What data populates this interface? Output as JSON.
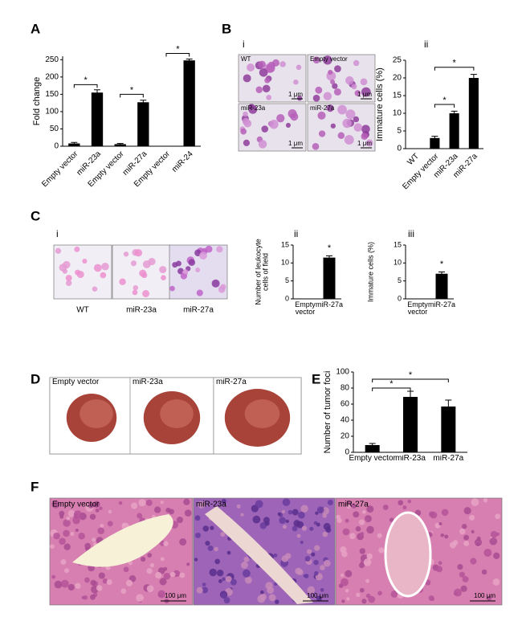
{
  "figure": {
    "panel_labels": [
      "A",
      "B",
      "C",
      "D",
      "E",
      "F"
    ],
    "sub_labels": {
      "B": [
        "i",
        "ii"
      ],
      "C": [
        "i",
        "ii",
        "iii"
      ]
    },
    "images": {
      "B": {
        "labels": [
          "WT",
          "Empty vector",
          "miR-23a",
          "miR-27a"
        ],
        "scale": [
          "1 μm",
          "1 μm",
          "1 μm",
          "1 μm"
        ]
      },
      "C": {
        "labels": [
          "WT",
          "miR-23a",
          "miR-27a"
        ]
      },
      "D": {
        "labels": [
          "Empty vector",
          "miR-23a",
          "miR-27a"
        ]
      },
      "F": {
        "labels": [
          "Empty vector",
          "miR-23a",
          "miR-27a"
        ],
        "scale": [
          "100 μm",
          "100 μm",
          "100 μm"
        ]
      }
    }
  },
  "chart_data": [
    {
      "type": "bar",
      "y_label": "Fold change",
      "color": "#000000",
      "categories": [
        "Empty vector",
        "miR-23a",
        "Empty vector",
        "miR-27a",
        "Empty vector",
        "miR-24"
      ],
      "values": [
        8,
        155,
        6,
        127,
        1,
        248
      ],
      "errors": [
        3,
        8,
        2,
        6,
        0,
        4
      ],
      "ylim": [
        0,
        260
      ],
      "yticks": [
        0,
        50,
        100,
        150,
        200,
        250
      ],
      "brackets": [
        {
          "label": "*",
          "between": [
            0,
            1
          ],
          "y": 178
        },
        {
          "label": "*",
          "between": [
            2,
            3
          ],
          "y": 150
        },
        {
          "label": "*",
          "between": [
            4,
            5
          ],
          "y": 268
        }
      ]
    },
    {
      "type": "bar",
      "y_label": "Immature cells (%)",
      "color": "#000000",
      "categories": [
        "WT",
        "Empty vector",
        "miR-23a",
        "miR-27a"
      ],
      "values": [
        null,
        3,
        10,
        20
      ],
      "errors": [
        null,
        0.5,
        0.6,
        1
      ],
      "ylim": [
        0,
        25
      ],
      "yticks": [
        0,
        5,
        10,
        15,
        20,
        25
      ],
      "brackets": [
        {
          "label": "*",
          "between": [
            1,
            2
          ],
          "y": 12.5
        },
        {
          "label": "*",
          "between": [
            1,
            3
          ],
          "y": 23
        }
      ]
    },
    {
      "type": "bar",
      "y_label": "Number of leukocyte cells of field",
      "color": "#000000",
      "categories": [
        "Empty vector",
        "miR-27a"
      ],
      "values": [
        null,
        11.5
      ],
      "errors": [
        null,
        0.5
      ],
      "ylim": [
        0,
        15
      ],
      "yticks": [
        0,
        5,
        10,
        15
      ],
      "brackets": [
        {
          "label": "*",
          "between": [
            1,
            1
          ],
          "y": 13
        }
      ]
    },
    {
      "type": "bar",
      "y_label": "Immature cells (%)",
      "color": "#000000",
      "categories": [
        "Empty vector",
        "miR-27a"
      ],
      "values": [
        null,
        7
      ],
      "errors": [
        null,
        0.5
      ],
      "ylim": [
        0,
        15
      ],
      "yticks": [
        0,
        5,
        10,
        15
      ],
      "brackets": [
        {
          "label": "*",
          "between": [
            1,
            1
          ],
          "y": 8.5
        }
      ]
    },
    {
      "type": "bar",
      "y_label": "Number of tumor foci",
      "color": "#000000",
      "categories": [
        "Empty vector",
        "miR-23a",
        "miR-27a"
      ],
      "values": [
        9,
        69,
        57
      ],
      "errors": [
        2,
        7,
        8
      ],
      "ylim": [
        0,
        100
      ],
      "yticks": [
        0,
        20,
        40,
        60,
        80,
        100
      ],
      "brackets": [
        {
          "label": "*",
          "between": [
            0,
            1
          ],
          "y": 80
        },
        {
          "label": "*",
          "between": [
            0,
            2
          ],
          "y": 91
        }
      ]
    }
  ]
}
